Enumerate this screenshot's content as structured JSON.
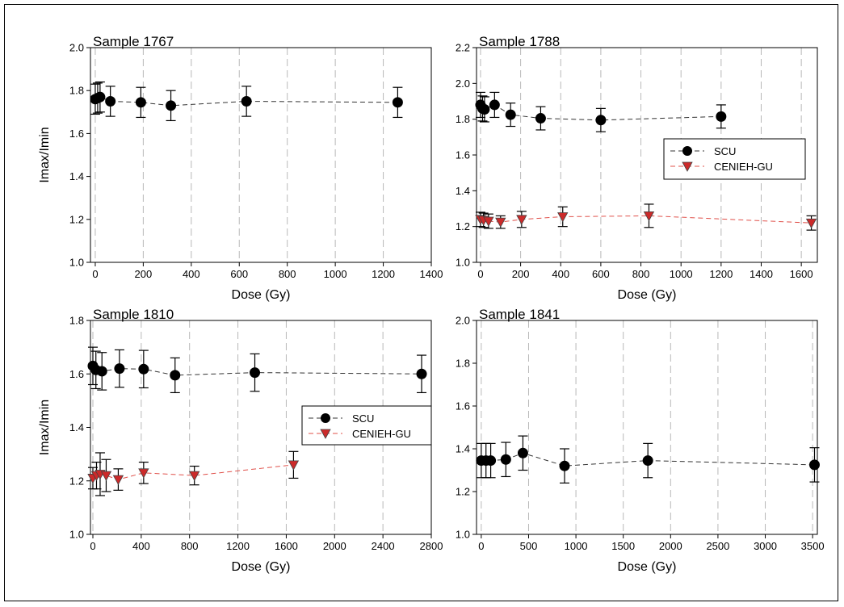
{
  "chart_data": [
    {
      "type": "scatter",
      "title": "Sample 1767",
      "xlabel": "Dose (Gy)",
      "ylabel": "Imax/Imin",
      "xlim": [
        -20,
        1400
      ],
      "ylim": [
        1.0,
        2.0
      ],
      "xticks": [
        0,
        200,
        400,
        600,
        800,
        1000,
        1200,
        1400
      ],
      "yticks": [
        1.0,
        1.2,
        1.4,
        1.6,
        1.8,
        2.0
      ],
      "ytick_labels": [
        "1.0",
        "1.2",
        "1.4",
        "1.6",
        "1.8",
        "2.0"
      ],
      "grid": "vertical dashed",
      "series": [
        {
          "name": "SCU",
          "marker": "circle",
          "color": "#000000",
          "points": [
            {
              "x": 0,
              "y": 1.76,
              "err": 0.07
            },
            {
              "x": 10,
              "y": 1.765,
              "err": 0.07
            },
            {
              "x": 20,
              "y": 1.77,
              "err": 0.07
            },
            {
              "x": 63,
              "y": 1.75,
              "err": 0.07
            },
            {
              "x": 190,
              "y": 1.745,
              "err": 0.07
            },
            {
              "x": 315,
              "y": 1.73,
              "err": 0.07
            },
            {
              "x": 630,
              "y": 1.75,
              "err": 0.07
            },
            {
              "x": 1260,
              "y": 1.745,
              "err": 0.07
            }
          ]
        }
      ]
    },
    {
      "type": "scatter",
      "title": "Sample 1788",
      "xlabel": "Dose (Gy)",
      "ylabel": "",
      "xlim": [
        -20,
        1680
      ],
      "ylim": [
        1.0,
        2.2
      ],
      "xticks": [
        0,
        200,
        400,
        600,
        800,
        1000,
        1200,
        1400,
        1600
      ],
      "yticks": [
        1.0,
        1.2,
        1.4,
        1.6,
        1.8,
        2.0,
        2.2
      ],
      "ytick_labels": [
        "1.0",
        "1.2",
        "1.4",
        "1.6",
        "1.8",
        "2.0",
        "2.2"
      ],
      "grid": "vertical dashed",
      "legend": {
        "placement": "right",
        "entries": [
          "SCU",
          "CENIEH-GU"
        ]
      },
      "series": [
        {
          "name": "SCU",
          "marker": "circle",
          "color": "#000000",
          "points": [
            {
              "x": 0,
              "y": 1.88,
              "err": 0.07
            },
            {
              "x": 10,
              "y": 1.86,
              "err": 0.07
            },
            {
              "x": 20,
              "y": 1.855,
              "err": 0.07
            },
            {
              "x": 70,
              "y": 1.88,
              "err": 0.07
            },
            {
              "x": 150,
              "y": 1.825,
              "err": 0.065
            },
            {
              "x": 300,
              "y": 1.805,
              "err": 0.065
            },
            {
              "x": 600,
              "y": 1.795,
              "err": 0.065
            },
            {
              "x": 1200,
              "y": 1.815,
              "err": 0.065
            }
          ]
        },
        {
          "name": "CENIEH-GU",
          "marker": "triangle-down",
          "color": "#cc2a2a",
          "points": [
            {
              "x": 0,
              "y": 1.24,
              "err": 0.04
            },
            {
              "x": 15,
              "y": 1.235,
              "err": 0.04
            },
            {
              "x": 40,
              "y": 1.23,
              "err": 0.04
            },
            {
              "x": 100,
              "y": 1.225,
              "err": 0.035
            },
            {
              "x": 205,
              "y": 1.24,
              "err": 0.045
            },
            {
              "x": 410,
              "y": 1.255,
              "err": 0.055
            },
            {
              "x": 840,
              "y": 1.26,
              "err": 0.065
            },
            {
              "x": 1650,
              "y": 1.22,
              "err": 0.04
            }
          ]
        }
      ]
    },
    {
      "type": "scatter",
      "title": "Sample 1810",
      "xlabel": "Dose (Gy)",
      "ylabel": "Imax/Imin",
      "xlim": [
        -20,
        2800
      ],
      "ylim": [
        1.0,
        1.8
      ],
      "xticks": [
        0,
        400,
        800,
        1200,
        1600,
        2000,
        2400,
        2800
      ],
      "yticks": [
        1.0,
        1.2,
        1.4,
        1.6,
        1.8
      ],
      "ytick_labels": [
        "1.0",
        "1.2",
        "1.4",
        "1.6",
        "1.8"
      ],
      "grid": "vertical dashed",
      "legend": {
        "placement": "center-right",
        "entries": [
          "SCU",
          "CENIEH-GU"
        ]
      },
      "series": [
        {
          "name": "SCU",
          "marker": "circle",
          "color": "#000000",
          "points": [
            {
              "x": 0,
              "y": 1.63,
              "err": 0.07
            },
            {
              "x": 25,
              "y": 1.615,
              "err": 0.07
            },
            {
              "x": 75,
              "y": 1.61,
              "err": 0.07
            },
            {
              "x": 220,
              "y": 1.62,
              "err": 0.07
            },
            {
              "x": 420,
              "y": 1.618,
              "err": 0.07
            },
            {
              "x": 680,
              "y": 1.595,
              "err": 0.065
            },
            {
              "x": 1340,
              "y": 1.605,
              "err": 0.07
            },
            {
              "x": 2720,
              "y": 1.6,
              "err": 0.07
            }
          ]
        },
        {
          "name": "CENIEH-GU",
          "marker": "triangle-down",
          "color": "#cc2a2a",
          "points": [
            {
              "x": 0,
              "y": 1.21,
              "err": 0.04
            },
            {
              "x": 30,
              "y": 1.22,
              "err": 0.05
            },
            {
              "x": 60,
              "y": 1.225,
              "err": 0.08
            },
            {
              "x": 110,
              "y": 1.22,
              "err": 0.06
            },
            {
              "x": 210,
              "y": 1.205,
              "err": 0.04
            },
            {
              "x": 420,
              "y": 1.23,
              "err": 0.04
            },
            {
              "x": 840,
              "y": 1.22,
              "err": 0.035
            },
            {
              "x": 1660,
              "y": 1.26,
              "err": 0.05
            }
          ]
        }
      ]
    },
    {
      "type": "scatter",
      "title": "Sample 1841",
      "xlabel": "Dose (Gy)",
      "ylabel": "",
      "xlim": [
        -50,
        3550
      ],
      "ylim": [
        1.0,
        2.0
      ],
      "xticks": [
        0,
        500,
        1000,
        1500,
        2000,
        2500,
        3000,
        3500
      ],
      "yticks": [
        1.0,
        1.2,
        1.4,
        1.6,
        1.8,
        2.0
      ],
      "ytick_labels": [
        "1.0",
        "1.2",
        "1.4",
        "1.6",
        "1.8",
        "2.0"
      ],
      "grid": "vertical dashed",
      "series": [
        {
          "name": "SCU",
          "marker": "circle",
          "color": "#000000",
          "points": [
            {
              "x": 0,
              "y": 1.345,
              "err": 0.08
            },
            {
              "x": 50,
              "y": 1.345,
              "err": 0.08
            },
            {
              "x": 100,
              "y": 1.345,
              "err": 0.08
            },
            {
              "x": 260,
              "y": 1.35,
              "err": 0.08
            },
            {
              "x": 440,
              "y": 1.38,
              "err": 0.08
            },
            {
              "x": 880,
              "y": 1.32,
              "err": 0.08
            },
            {
              "x": 1760,
              "y": 1.345,
              "err": 0.08
            },
            {
              "x": 3520,
              "y": 1.325,
              "err": 0.08
            }
          ]
        }
      ]
    }
  ]
}
